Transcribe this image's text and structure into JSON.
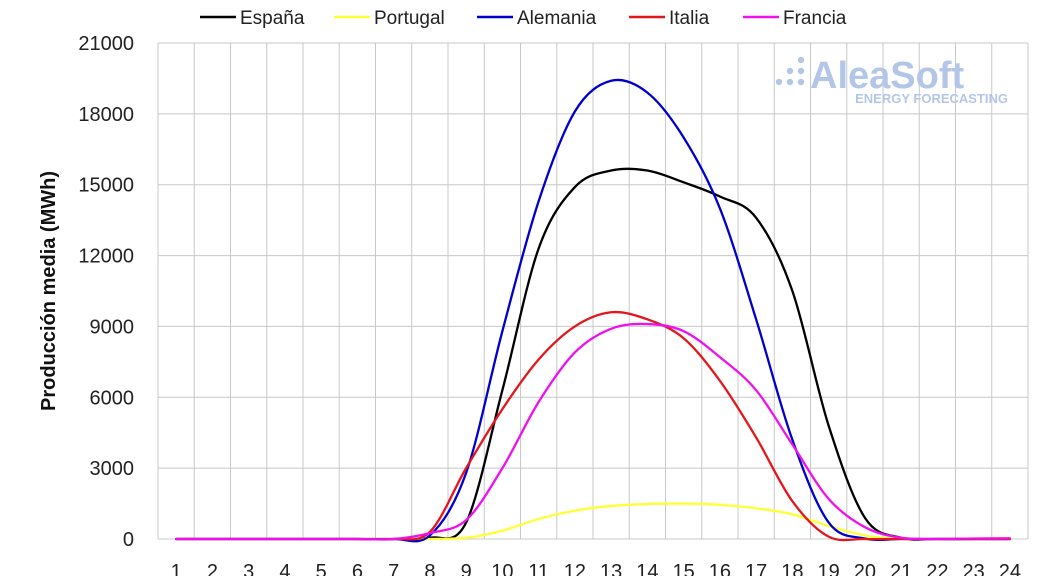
{
  "watermark": {
    "brand": "AleaSoft",
    "tagline": "ENERGY FORECASTING"
  },
  "chart_data": {
    "type": "line",
    "ylabel": "Producción media (MWh)",
    "xlabel": "",
    "x": [
      "1",
      "2",
      "3",
      "4",
      "5",
      "6",
      "7",
      "8",
      "9",
      "10",
      "11",
      "12",
      "13",
      "14",
      "15",
      "16",
      "17",
      "18",
      "19",
      "20",
      "21",
      "22",
      "23",
      "24"
    ],
    "ylim": [
      0,
      21000
    ],
    "yticks": [
      0,
      3000,
      6000,
      9000,
      12000,
      15000,
      18000,
      21000
    ],
    "grid": true,
    "legend_position": "top",
    "series": [
      {
        "name": "España",
        "color": "#000000",
        "values": [
          0,
          0,
          0,
          0,
          0,
          0,
          0,
          50,
          700,
          6300,
          12300,
          14900,
          15600,
          15600,
          15100,
          14500,
          13600,
          10500,
          4800,
          900,
          50,
          0,
          0,
          0
        ]
      },
      {
        "name": "Portugal",
        "color": "#ffff33",
        "values": [
          0,
          0,
          0,
          0,
          0,
          0,
          0,
          0,
          50,
          350,
          850,
          1200,
          1400,
          1480,
          1500,
          1450,
          1300,
          1050,
          550,
          150,
          0,
          0,
          0,
          0
        ]
      },
      {
        "name": "Alemania",
        "color": "#0000cc",
        "values": [
          0,
          0,
          0,
          0,
          0,
          0,
          0,
          150,
          2800,
          8800,
          14300,
          18100,
          19400,
          18900,
          17000,
          14000,
          9300,
          4200,
          700,
          20,
          0,
          0,
          0,
          0
        ]
      },
      {
        "name": "Italia",
        "color": "#e3161b",
        "values": [
          0,
          0,
          0,
          0,
          0,
          0,
          0,
          300,
          3000,
          5500,
          7600,
          9000,
          9600,
          9300,
          8500,
          6700,
          4300,
          1600,
          100,
          0,
          0,
          0,
          0,
          0
        ]
      },
      {
        "name": "Francia",
        "color": "#ee11ee",
        "values": [
          0,
          0,
          0,
          0,
          0,
          0,
          0,
          250,
          800,
          3000,
          5800,
          7900,
          8900,
          9100,
          8800,
          7700,
          6300,
          4000,
          1700,
          500,
          50,
          0,
          20,
          30
        ]
      }
    ]
  }
}
